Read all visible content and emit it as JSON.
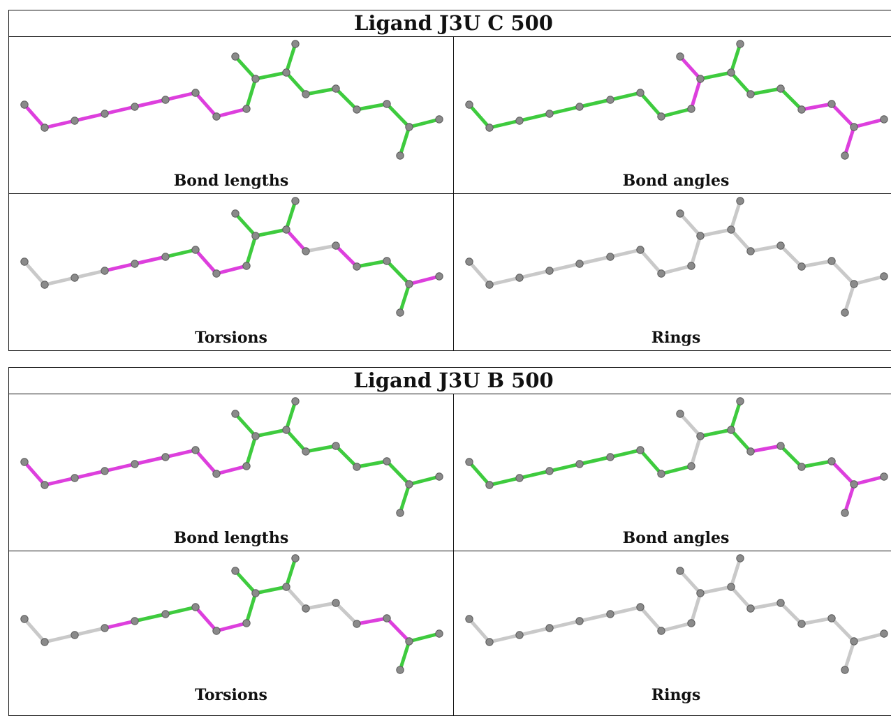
{
  "colors": {
    "green": "#3ecb3e",
    "magenta": "#dd3fdd",
    "grey": "#c9c9c9"
  },
  "tables": [
    {
      "title": "Ligand J3U C 500",
      "cells": [
        {
          "caption": "Bond lengths",
          "colors": "MMMMMMMMGGGGGGGGGGGGGGG"
        },
        {
          "caption": "Bond angles",
          "colors": "GGGGGGGGMMGGGGGMMMMMMGG"
        },
        {
          "caption": "Torsions",
          "colors": "NNNMMGMMGGGGMNMGGMGMGNN"
        },
        {
          "caption": "Rings",
          "colors": "NNNNNNNNNNNNNNNNNNNNNNN"
        }
      ]
    },
    {
      "title": "Ligand J3U B 500",
      "cells": [
        {
          "caption": "Bond lengths",
          "colors": "MMMMMMMMGGGGGGGGGGGGGGG"
        },
        {
          "caption": "Bond angles",
          "colors": "GGGGGGGGNNGGGMGGMMMMGGG"
        },
        {
          "caption": "Torsions",
          "colors": "NNNMGGMMGGGGNNNMMGGGMNN"
        },
        {
          "caption": "Rings",
          "colors": "NNNNNNNNNNNNNNNNNNNNNNN"
        }
      ]
    }
  ]
}
